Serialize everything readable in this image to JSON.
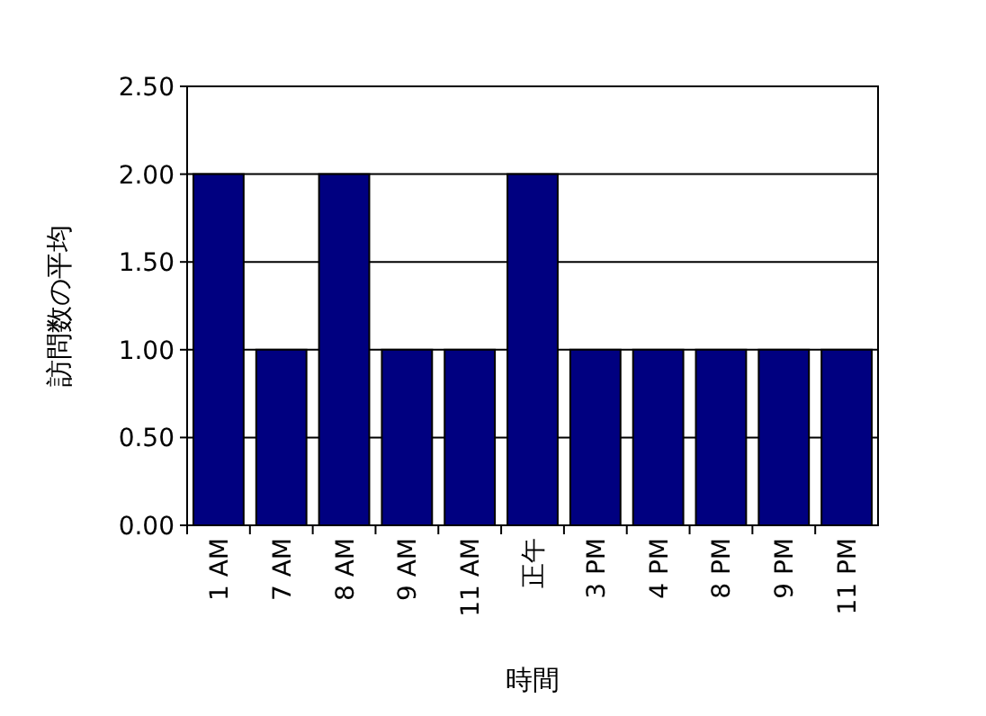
{
  "chart_data": {
    "type": "bar",
    "xlabel": "時間",
    "ylabel": "訪問数の平均",
    "categories": [
      "1 AM",
      "7 AM",
      "8 AM",
      "9 AM",
      "11 AM",
      "正午",
      "3 PM",
      "4 PM",
      "8 PM",
      "9 PM",
      "11 PM"
    ],
    "values": [
      2,
      1,
      2,
      1,
      1,
      2,
      1,
      1,
      1,
      1,
      1
    ],
    "color": "#000080",
    "ylim": [
      0,
      2.5
    ],
    "yticks": [
      {
        "value": 0,
        "label": "0.00"
      },
      {
        "value": 0.5,
        "label": "0.50"
      },
      {
        "value": 1,
        "label": "1.00"
      },
      {
        "value": 1.5,
        "label": "1.50"
      },
      {
        "value": 2,
        "label": "2.00"
      },
      {
        "value": 2.5,
        "label": "2.50"
      }
    ],
    "grid": "y"
  }
}
